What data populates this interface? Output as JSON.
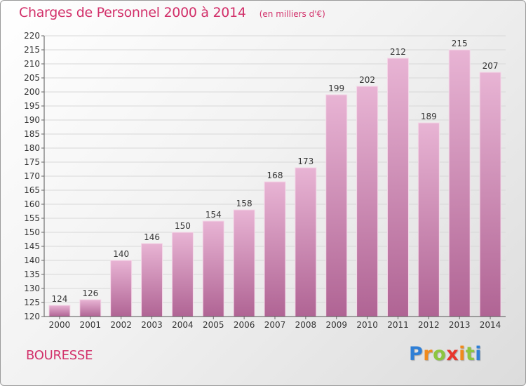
{
  "title": "Charges de Personnel 2000 à 2014",
  "subtitle": "(en milliers d'€)",
  "commune": "BOURESSE",
  "logo": {
    "letters": [
      "P",
      "r",
      "o",
      "x",
      "i",
      "t",
      "i"
    ],
    "colors": [
      "#2f7fd6",
      "#f08a1c",
      "#8cc63f",
      "#e8362d",
      "#f08a1c",
      "#8cc63f",
      "#2f7fd6"
    ]
  },
  "colors": {
    "accent": "#d2306a",
    "bar_top": "#e8b4d4",
    "bar_bottom": "#b06494",
    "bar_edge": "#f4d8e8"
  },
  "chart_data": {
    "type": "bar",
    "title": "Charges de Personnel 2000 à 2014",
    "subtitle": "(en milliers d'€)",
    "categories": [
      "2000",
      "2001",
      "2002",
      "2003",
      "2004",
      "2005",
      "2006",
      "2007",
      "2008",
      "2009",
      "2010",
      "2011",
      "2012",
      "2013",
      "2014"
    ],
    "values": [
      124,
      126,
      140,
      146,
      150,
      154,
      158,
      168,
      173,
      199,
      202,
      212,
      189,
      215,
      207
    ],
    "ylim": [
      120,
      220
    ],
    "yticks": [
      120,
      125,
      130,
      135,
      140,
      145,
      150,
      155,
      160,
      165,
      170,
      175,
      180,
      185,
      190,
      195,
      200,
      205,
      210,
      215,
      220
    ],
    "grid": true,
    "xlabel": "",
    "ylabel": ""
  }
}
